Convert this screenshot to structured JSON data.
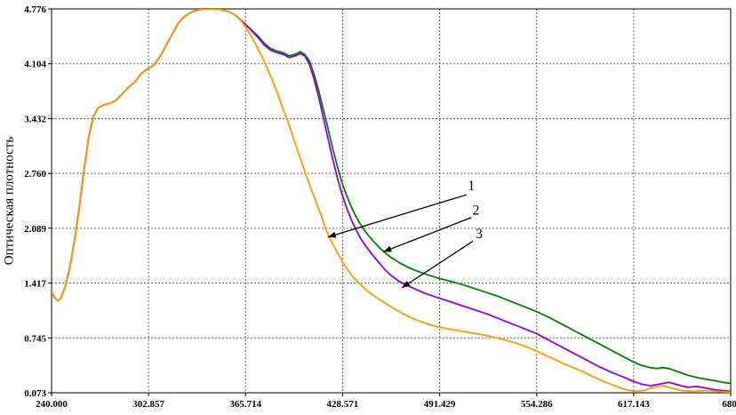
{
  "chart_data": {
    "type": "line",
    "title": "",
    "xlabel": "",
    "ylabel": "Оптическая плотность",
    "grid": true,
    "legend": "none",
    "xlim": [
      240,
      680
    ],
    "ylim": [
      0.073,
      4.776
    ],
    "x_tick_values": [
      240,
      302.857,
      365.714,
      428.571,
      491.429,
      554.286,
      617.143,
      680
    ],
    "x_tick_labels": [
      "240.000",
      "302.857",
      "365.714",
      "428.571",
      "491.429",
      "554.286",
      "617.143",
      "680."
    ],
    "y_tick_values": [
      4.776,
      4.104,
      3.432,
      2.76,
      2.089,
      1.417,
      0.745,
      0.073
    ],
    "y_tick_labels": [
      "4.776",
      "4.104",
      "3.432",
      "2.760",
      "2.089",
      "1.417",
      "0.745",
      "0.073"
    ],
    "series": [
      {
        "name": "3",
        "color": "#008000",
        "points": [
          [
            240,
            1.31
          ],
          [
            242,
            1.24
          ],
          [
            244,
            1.2
          ],
          [
            246,
            1.23
          ],
          [
            249,
            1.38
          ],
          [
            252,
            1.62
          ],
          [
            255,
            1.95
          ],
          [
            258,
            2.35
          ],
          [
            261,
            2.8
          ],
          [
            264,
            3.2
          ],
          [
            267,
            3.45
          ],
          [
            270,
            3.56
          ],
          [
            274,
            3.6
          ],
          [
            278,
            3.62
          ],
          [
            282,
            3.66
          ],
          [
            286,
            3.74
          ],
          [
            290,
            3.82
          ],
          [
            294,
            3.88
          ],
          [
            298,
            3.98
          ],
          [
            302,
            4.04
          ],
          [
            306,
            4.08
          ],
          [
            310,
            4.18
          ],
          [
            314,
            4.32
          ],
          [
            318,
            4.46
          ],
          [
            322,
            4.6
          ],
          [
            326,
            4.68
          ],
          [
            330,
            4.73
          ],
          [
            334,
            4.76
          ],
          [
            338,
            4.776
          ],
          [
            344,
            4.776
          ],
          [
            350,
            4.77
          ],
          [
            355,
            4.74
          ],
          [
            359,
            4.7
          ],
          [
            362,
            4.65
          ],
          [
            366,
            4.58
          ],
          [
            370,
            4.51
          ],
          [
            374,
            4.44
          ],
          [
            378,
            4.35
          ],
          [
            382,
            4.29
          ],
          [
            386,
            4.26
          ],
          [
            390,
            4.24
          ],
          [
            394,
            4.2
          ],
          [
            398,
            4.22
          ],
          [
            401,
            4.25
          ],
          [
            404,
            4.22
          ],
          [
            407,
            4.14
          ],
          [
            410,
            3.98
          ],
          [
            413,
            3.78
          ],
          [
            416,
            3.55
          ],
          [
            419,
            3.32
          ],
          [
            422,
            3.08
          ],
          [
            425,
            2.86
          ],
          [
            428,
            2.66
          ],
          [
            431,
            2.5
          ],
          [
            434,
            2.36
          ],
          [
            437,
            2.24
          ],
          [
            440,
            2.14
          ],
          [
            444,
            2.03
          ],
          [
            448,
            1.94
          ],
          [
            452,
            1.86
          ],
          [
            456,
            1.79
          ],
          [
            460,
            1.73
          ],
          [
            465,
            1.67
          ],
          [
            470,
            1.62
          ],
          [
            476,
            1.57
          ],
          [
            482,
            1.53
          ],
          [
            490,
            1.48
          ],
          [
            498,
            1.44
          ],
          [
            506,
            1.4
          ],
          [
            514,
            1.35
          ],
          [
            522,
            1.3
          ],
          [
            530,
            1.25
          ],
          [
            538,
            1.19
          ],
          [
            546,
            1.13
          ],
          [
            554,
            1.07
          ],
          [
            562,
            1.0
          ],
          [
            570,
            0.92
          ],
          [
            578,
            0.84
          ],
          [
            586,
            0.76
          ],
          [
            594,
            0.68
          ],
          [
            602,
            0.6
          ],
          [
            610,
            0.52
          ],
          [
            616,
            0.46
          ],
          [
            622,
            0.41
          ],
          [
            628,
            0.38
          ],
          [
            632,
            0.37
          ],
          [
            636,
            0.38
          ],
          [
            640,
            0.37
          ],
          [
            646,
            0.33
          ],
          [
            652,
            0.29
          ],
          [
            658,
            0.26
          ],
          [
            664,
            0.24
          ],
          [
            670,
            0.22
          ],
          [
            675,
            0.2
          ],
          [
            680,
            0.19
          ]
        ]
      },
      {
        "name": "2",
        "color": "#9400d3",
        "points": [
          [
            240,
            1.31
          ],
          [
            242,
            1.24
          ],
          [
            244,
            1.2
          ],
          [
            246,
            1.23
          ],
          [
            249,
            1.38
          ],
          [
            252,
            1.62
          ],
          [
            255,
            1.95
          ],
          [
            258,
            2.35
          ],
          [
            261,
            2.8
          ],
          [
            264,
            3.2
          ],
          [
            267,
            3.45
          ],
          [
            270,
            3.56
          ],
          [
            274,
            3.6
          ],
          [
            278,
            3.62
          ],
          [
            282,
            3.66
          ],
          [
            286,
            3.74
          ],
          [
            290,
            3.82
          ],
          [
            294,
            3.88
          ],
          [
            298,
            3.98
          ],
          [
            302,
            4.04
          ],
          [
            306,
            4.08
          ],
          [
            310,
            4.18
          ],
          [
            314,
            4.32
          ],
          [
            318,
            4.46
          ],
          [
            322,
            4.6
          ],
          [
            326,
            4.68
          ],
          [
            330,
            4.73
          ],
          [
            334,
            4.76
          ],
          [
            338,
            4.776
          ],
          [
            344,
            4.776
          ],
          [
            350,
            4.77
          ],
          [
            355,
            4.74
          ],
          [
            359,
            4.7
          ],
          [
            362,
            4.65
          ],
          [
            366,
            4.58
          ],
          [
            370,
            4.5
          ],
          [
            374,
            4.42
          ],
          [
            378,
            4.33
          ],
          [
            382,
            4.27
          ],
          [
            386,
            4.24
          ],
          [
            390,
            4.22
          ],
          [
            394,
            4.18
          ],
          [
            398,
            4.2
          ],
          [
            401,
            4.23
          ],
          [
            404,
            4.2
          ],
          [
            407,
            4.1
          ],
          [
            410,
            3.92
          ],
          [
            413,
            3.7
          ],
          [
            416,
            3.45
          ],
          [
            419,
            3.2
          ],
          [
            422,
            2.95
          ],
          [
            425,
            2.72
          ],
          [
            428,
            2.52
          ],
          [
            431,
            2.35
          ],
          [
            434,
            2.2
          ],
          [
            437,
            2.08
          ],
          [
            440,
            1.97
          ],
          [
            444,
            1.86
          ],
          [
            448,
            1.76
          ],
          [
            452,
            1.67
          ],
          [
            456,
            1.58
          ],
          [
            460,
            1.51
          ],
          [
            465,
            1.44
          ],
          [
            470,
            1.39
          ],
          [
            476,
            1.34
          ],
          [
            482,
            1.29
          ],
          [
            490,
            1.24
          ],
          [
            498,
            1.19
          ],
          [
            506,
            1.14
          ],
          [
            514,
            1.09
          ],
          [
            522,
            1.04
          ],
          [
            530,
            0.98
          ],
          [
            538,
            0.92
          ],
          [
            546,
            0.86
          ],
          [
            554,
            0.8
          ],
          [
            562,
            0.72
          ],
          [
            570,
            0.64
          ],
          [
            578,
            0.56
          ],
          [
            586,
            0.48
          ],
          [
            594,
            0.4
          ],
          [
            602,
            0.33
          ],
          [
            610,
            0.27
          ],
          [
            616,
            0.22
          ],
          [
            622,
            0.18
          ],
          [
            628,
            0.16
          ],
          [
            634,
            0.18
          ],
          [
            640,
            0.2
          ],
          [
            646,
            0.17
          ],
          [
            652,
            0.14
          ],
          [
            658,
            0.15
          ],
          [
            664,
            0.13
          ],
          [
            670,
            0.11
          ],
          [
            675,
            0.1
          ],
          [
            680,
            0.09
          ]
        ]
      },
      {
        "name": "1",
        "color": "#ff9900",
        "points": [
          [
            240,
            1.31
          ],
          [
            242,
            1.24
          ],
          [
            244,
            1.2
          ],
          [
            246,
            1.23
          ],
          [
            249,
            1.38
          ],
          [
            252,
            1.62
          ],
          [
            255,
            1.95
          ],
          [
            258,
            2.35
          ],
          [
            261,
            2.8
          ],
          [
            264,
            3.2
          ],
          [
            267,
            3.45
          ],
          [
            270,
            3.56
          ],
          [
            274,
            3.6
          ],
          [
            278,
            3.62
          ],
          [
            282,
            3.66
          ],
          [
            286,
            3.74
          ],
          [
            290,
            3.82
          ],
          [
            294,
            3.88
          ],
          [
            298,
            3.98
          ],
          [
            302,
            4.04
          ],
          [
            306,
            4.08
          ],
          [
            310,
            4.18
          ],
          [
            314,
            4.32
          ],
          [
            318,
            4.46
          ],
          [
            322,
            4.6
          ],
          [
            326,
            4.68
          ],
          [
            330,
            4.73
          ],
          [
            334,
            4.76
          ],
          [
            338,
            4.776
          ],
          [
            344,
            4.776
          ],
          [
            350,
            4.77
          ],
          [
            355,
            4.74
          ],
          [
            359,
            4.7
          ],
          [
            362,
            4.65
          ],
          [
            366,
            4.55
          ],
          [
            370,
            4.42
          ],
          [
            374,
            4.28
          ],
          [
            378,
            4.12
          ],
          [
            382,
            3.95
          ],
          [
            386,
            3.76
          ],
          [
            390,
            3.55
          ],
          [
            394,
            3.35
          ],
          [
            398,
            3.12
          ],
          [
            402,
            2.9
          ],
          [
            406,
            2.68
          ],
          [
            410,
            2.48
          ],
          [
            414,
            2.28
          ],
          [
            418,
            2.06
          ],
          [
            422,
            1.9
          ],
          [
            426,
            1.76
          ],
          [
            430,
            1.63
          ],
          [
            435,
            1.5
          ],
          [
            440,
            1.4
          ],
          [
            446,
            1.3
          ],
          [
            452,
            1.22
          ],
          [
            458,
            1.15
          ],
          [
            465,
            1.07
          ],
          [
            472,
            1.0
          ],
          [
            480,
            0.94
          ],
          [
            488,
            0.89
          ],
          [
            496,
            0.86
          ],
          [
            505,
            0.83
          ],
          [
            514,
            0.8
          ],
          [
            523,
            0.77
          ],
          [
            532,
            0.73
          ],
          [
            541,
            0.68
          ],
          [
            550,
            0.62
          ],
          [
            558,
            0.55
          ],
          [
            566,
            0.48
          ],
          [
            574,
            0.41
          ],
          [
            582,
            0.35
          ],
          [
            590,
            0.28
          ],
          [
            598,
            0.21
          ],
          [
            606,
            0.15
          ],
          [
            612,
            0.11
          ],
          [
            618,
            0.09
          ],
          [
            624,
            0.1
          ],
          [
            630,
            0.14
          ],
          [
            636,
            0.16
          ],
          [
            642,
            0.13
          ],
          [
            648,
            0.1
          ],
          [
            656,
            0.09
          ],
          [
            664,
            0.1
          ],
          [
            672,
            0.09
          ],
          [
            680,
            0.08
          ]
        ]
      }
    ],
    "annotations": [
      {
        "label": "1",
        "text_x": 512,
        "text_y": 2.62,
        "from_x": 509,
        "from_y": 2.5,
        "to_x": 419,
        "to_y": 1.98
      },
      {
        "label": "2",
        "text_x": 515,
        "text_y": 2.32,
        "from_x": 512,
        "from_y": 2.22,
        "to_x": 455,
        "to_y": 1.8
      },
      {
        "label": "3",
        "text_x": 517,
        "text_y": 2.03,
        "from_x": 513,
        "from_y": 1.93,
        "to_x": 467,
        "to_y": 1.36
      }
    ]
  }
}
